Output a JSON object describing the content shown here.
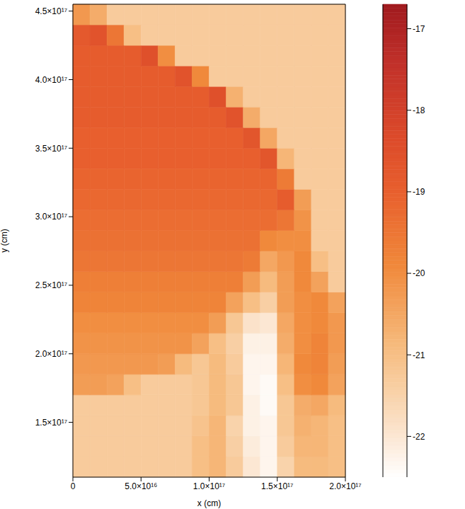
{
  "chart_data": {
    "type": "heatmap",
    "x_label": "x (cm)",
    "y_label": "y (cm)",
    "xlim": [
      0,
      2e+17
    ],
    "ylim": [
      1.1e+17,
      4.55e+17
    ],
    "xticks": [
      0,
      {
        "value": 5e+16,
        "label": "5.0×10¹⁶"
      },
      {
        "value": 1e+17,
        "label": "1.0×10¹⁷"
      },
      {
        "value": 1.5e+17,
        "label": "1.5×10¹⁷"
      },
      {
        "value": 2e+17,
        "label": "2.0×10¹⁷"
      }
    ],
    "yticks": [
      {
        "value": 1.5e+17,
        "label": "1.5×10¹⁷"
      },
      {
        "value": 2e+17,
        "label": "2.0×10¹⁷"
      },
      {
        "value": 2.5e+17,
        "label": "2.5×10¹⁷"
      },
      {
        "value": 3e+17,
        "label": "3.0×10¹⁷"
      },
      {
        "value": 3.5e+17,
        "label": "3.5×10¹⁷"
      },
      {
        "value": 4e+17,
        "label": "4.0×10¹⁷"
      },
      {
        "value": 4.5e+17,
        "label": "4.5×10¹⁷"
      }
    ],
    "x_bins": [
      0,
      1.25e+16,
      2.5e+16,
      3.75e+16,
      5e+16,
      6.25e+16,
      7.5e+16,
      8.75e+16,
      1e+17,
      1.125e+17,
      1.25e+17,
      1.375e+17,
      1.5e+17,
      1.625e+17,
      1.75e+17,
      1.875e+17,
      2e+17
    ],
    "y_bins": [
      1.1e+17,
      1.25e+17,
      1.4e+17,
      1.55e+17,
      1.7e+17,
      1.85e+17,
      2e+17,
      2.15e+17,
      2.3e+17,
      2.45e+17,
      2.6e+17,
      2.75e+17,
      2.9e+17,
      3.05e+17,
      3.2e+17,
      3.35e+17,
      3.5e+17,
      3.65e+17,
      3.8e+17,
      3.95e+17,
      4.1e+17,
      4.25e+17,
      4.4e+17,
      4.55e+17
    ],
    "cells": [
      [
        -21.3,
        -21.3,
        -21.3,
        -21.3,
        -21.3,
        -21.3,
        -21.3,
        -21.0,
        -20.8,
        -21.3,
        -22.0,
        -22.3,
        -21.5,
        -20.9,
        -20.9,
        -21.0
      ],
      [
        -21.3,
        -21.3,
        -21.3,
        -21.3,
        -21.3,
        -21.3,
        -21.3,
        -21.0,
        -20.8,
        -21.4,
        -22.1,
        -22.3,
        -21.3,
        -20.8,
        -20.8,
        -21.0
      ],
      [
        -21.3,
        -21.3,
        -21.3,
        -21.3,
        -21.3,
        -21.3,
        -21.3,
        -21.1,
        -20.8,
        -21.5,
        -22.2,
        -22.3,
        -21.2,
        -20.7,
        -20.8,
        -21.0
      ],
      [
        -21.3,
        -21.3,
        -21.3,
        -21.3,
        -21.3,
        -21.3,
        -21.3,
        -21.2,
        -20.9,
        -21.2,
        -22.2,
        -22.4,
        -21.2,
        -20.6,
        -20.5,
        -20.9
      ],
      [
        -20.3,
        -20.3,
        -20.4,
        -21.0,
        -21.3,
        -21.3,
        -21.3,
        -21.2,
        -20.9,
        -21.2,
        -22.3,
        -22.4,
        -21.0,
        -20.0,
        -19.9,
        -20.4
      ],
      [
        -20.2,
        -20.2,
        -20.2,
        -20.2,
        -20.2,
        -20.3,
        -20.9,
        -21.2,
        -20.9,
        -21.3,
        -22.3,
        -22.3,
        -20.8,
        -19.9,
        -19.8,
        -20.3
      ],
      [
        -20.1,
        -20.1,
        -20.1,
        -20.1,
        -20.1,
        -20.1,
        -20.1,
        -20.4,
        -21.0,
        -21.4,
        -22.2,
        -22.2,
        -20.6,
        -20.0,
        -19.8,
        -20.2
      ],
      [
        -20.0,
        -20.0,
        -20.0,
        -20.0,
        -20.0,
        -20.0,
        -20.0,
        -20.0,
        -20.3,
        -21.2,
        -21.9,
        -22.0,
        -20.5,
        -20.0,
        -19.9,
        -20.2
      ],
      [
        -19.8,
        -19.8,
        -19.8,
        -19.8,
        -19.8,
        -19.8,
        -19.8,
        -19.8,
        -19.8,
        -20.4,
        -21.0,
        -21.4,
        -20.3,
        -20.0,
        -19.9,
        -20.4
      ],
      [
        -19.7,
        -19.7,
        -19.7,
        -19.7,
        -19.7,
        -19.7,
        -19.7,
        -19.7,
        -19.7,
        -19.7,
        -20.3,
        -20.9,
        -20.3,
        -19.9,
        -20.4,
        -21.3
      ],
      [
        -19.5,
        -19.5,
        -19.5,
        -19.5,
        -19.5,
        -19.5,
        -19.5,
        -19.5,
        -19.5,
        -19.5,
        -19.6,
        -20.5,
        -20.2,
        -19.9,
        -21.0,
        -21.3
      ],
      [
        -19.4,
        -19.4,
        -19.4,
        -19.4,
        -19.4,
        -19.4,
        -19.4,
        -19.4,
        -19.4,
        -19.4,
        -19.4,
        -19.9,
        -20.0,
        -20.0,
        -21.3,
        -21.3
      ],
      [
        -19.3,
        -19.3,
        -19.3,
        -19.3,
        -19.3,
        -19.3,
        -19.3,
        -19.3,
        -19.3,
        -19.3,
        -19.3,
        -19.3,
        -19.5,
        -20.1,
        -21.3,
        -21.3
      ],
      [
        -19.2,
        -19.2,
        -19.2,
        -19.2,
        -19.2,
        -19.2,
        -19.2,
        -19.2,
        -19.2,
        -19.2,
        -19.2,
        -19.2,
        -18.9,
        -20.3,
        -21.3,
        -21.3
      ],
      [
        -19.1,
        -19.1,
        -19.1,
        -19.1,
        -19.1,
        -19.1,
        -19.1,
        -19.1,
        -19.1,
        -19.1,
        -19.1,
        -19.1,
        -19.6,
        -21.3,
        -21.3,
        -21.3
      ],
      [
        -19.0,
        -19.0,
        -19.0,
        -19.0,
        -19.0,
        -19.0,
        -19.0,
        -19.0,
        -19.0,
        -19.0,
        -19.0,
        -18.7,
        -20.8,
        -21.3,
        -21.3,
        -21.3
      ],
      [
        -19.0,
        -19.0,
        -19.0,
        -19.0,
        -19.0,
        -19.0,
        -19.0,
        -19.0,
        -19.0,
        -19.0,
        -18.7,
        -20.5,
        -21.3,
        -21.3,
        -21.3,
        -21.3
      ],
      [
        -18.9,
        -18.9,
        -18.9,
        -18.9,
        -18.9,
        -18.9,
        -18.9,
        -18.9,
        -18.9,
        -18.6,
        -20.6,
        -21.3,
        -21.3,
        -21.3,
        -21.3,
        -21.3
      ],
      [
        -18.9,
        -18.9,
        -18.9,
        -18.9,
        -18.9,
        -18.9,
        -18.9,
        -18.9,
        -18.5,
        -20.7,
        -21.3,
        -21.3,
        -21.3,
        -21.3,
        -21.3,
        -21.3
      ],
      [
        -18.9,
        -18.9,
        -18.9,
        -18.9,
        -18.9,
        -18.9,
        -18.6,
        -19.9,
        -21.3,
        -21.3,
        -21.3,
        -21.3,
        -21.3,
        -21.3,
        -21.3,
        -21.3
      ],
      [
        -18.9,
        -18.9,
        -18.9,
        -18.9,
        -18.5,
        -20.0,
        -21.3,
        -21.3,
        -21.3,
        -21.3,
        -21.3,
        -21.3,
        -21.3,
        -21.3,
        -21.3,
        -21.3
      ],
      [
        -18.8,
        -18.6,
        -19.5,
        -21.0,
        -21.3,
        -21.3,
        -21.3,
        -21.3,
        -21.3,
        -21.3,
        -21.3,
        -21.3,
        -21.3,
        -21.3,
        -21.3,
        -21.3
      ],
      [
        -20.2,
        -20.6,
        -21.3,
        -21.3,
        -21.3,
        -21.3,
        -21.3,
        -21.3,
        -21.3,
        -21.3,
        -21.3,
        -21.3,
        -21.3,
        -21.3,
        -21.3,
        -21.3
      ]
    ],
    "colorbar": {
      "range": [
        -22.5,
        -16.7
      ],
      "ticks": [
        -22,
        -21,
        -20,
        -19,
        -18,
        -17
      ]
    }
  }
}
